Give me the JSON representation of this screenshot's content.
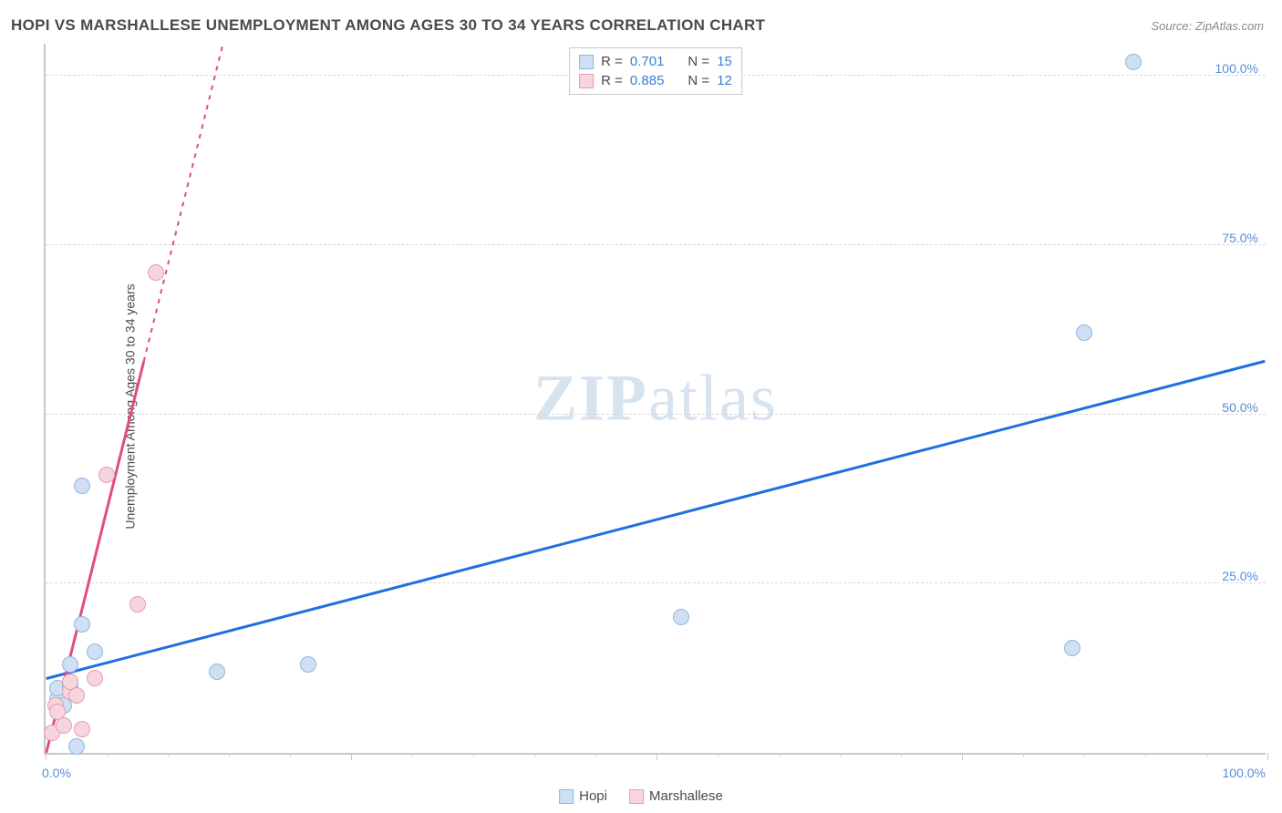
{
  "title": "HOPI VS MARSHALLESE UNEMPLOYMENT AMONG AGES 30 TO 34 YEARS CORRELATION CHART",
  "source": "Source: ZipAtlas.com",
  "y_axis_label": "Unemployment Among Ages 30 to 34 years",
  "watermark": {
    "bold": "ZIP",
    "rest": "atlas"
  },
  "chart": {
    "type": "scatter",
    "xlim": [
      0,
      100
    ],
    "ylim": [
      0,
      105
    ],
    "x_ticks": [
      0,
      100
    ],
    "x_tick_labels": [
      "0.0%",
      "100.0%"
    ],
    "x_minor_tick_step": 5,
    "y_ticks": [
      25,
      50,
      75,
      100
    ],
    "y_tick_labels": [
      "25.0%",
      "50.0%",
      "75.0%",
      "100.0%"
    ],
    "background_color": "#ffffff",
    "grid_color": "#d8d8d8",
    "axis_color": "#c8c8c8",
    "tick_label_color": "#5a8bd6",
    "series": [
      {
        "name": "Hopi",
        "color_fill": "#cfe0f5",
        "color_stroke": "#8fb6e3",
        "line_color": "#1f6fe0",
        "marker_radius": 9,
        "R": "0.701",
        "N": "15",
        "points": [
          {
            "x": 1.0,
            "y": 8.0
          },
          {
            "x": 1.0,
            "y": 9.5
          },
          {
            "x": 2.0,
            "y": 10.0
          },
          {
            "x": 2.0,
            "y": 13.0
          },
          {
            "x": 3.0,
            "y": 19.0
          },
          {
            "x": 3.0,
            "y": 39.5
          },
          {
            "x": 4.0,
            "y": 15.0
          },
          {
            "x": 2.5,
            "y": 1.0
          },
          {
            "x": 14.0,
            "y": 12.0
          },
          {
            "x": 21.5,
            "y": 13.0
          },
          {
            "x": 52.0,
            "y": 20.0
          },
          {
            "x": 84.0,
            "y": 15.5
          },
          {
            "x": 85.0,
            "y": 62.0
          },
          {
            "x": 89.0,
            "y": 102.0
          },
          {
            "x": 1.5,
            "y": 7.0
          }
        ],
        "trend": {
          "x1": 0,
          "y1": 11,
          "x2": 100,
          "y2": 58
        }
      },
      {
        "name": "Marshallese",
        "color_fill": "#f7d5de",
        "color_stroke": "#e79bb0",
        "line_color": "#e14b84",
        "marker_radius": 9,
        "R": "0.885",
        "N": "12",
        "points": [
          {
            "x": 0.5,
            "y": 3.0
          },
          {
            "x": 0.8,
            "y": 7.0
          },
          {
            "x": 1.0,
            "y": 6.0
          },
          {
            "x": 1.5,
            "y": 4.0
          },
          {
            "x": 2.0,
            "y": 9.0
          },
          {
            "x": 2.0,
            "y": 10.5
          },
          {
            "x": 2.5,
            "y": 8.5
          },
          {
            "x": 3.0,
            "y": 3.5
          },
          {
            "x": 4.0,
            "y": 11.0
          },
          {
            "x": 5.0,
            "y": 41.0
          },
          {
            "x": 7.5,
            "y": 22.0
          },
          {
            "x": 9.0,
            "y": 71.0
          }
        ],
        "trend": {
          "x1": 0,
          "y1": 0,
          "x2": 14.5,
          "y2": 105
        },
        "trend_dash_after_x": 8
      }
    ]
  },
  "stats_legend": {
    "rows": [
      {
        "swatch_fill": "#cfe0f5",
        "swatch_border": "#8fb6e3",
        "label_r": "R =",
        "val_r": "0.701",
        "label_n": "N =",
        "val_n": "15"
      },
      {
        "swatch_fill": "#f7d5de",
        "swatch_border": "#e79bb0",
        "label_r": "R =",
        "val_r": "0.885",
        "label_n": "N =",
        "val_n": "12"
      }
    ]
  },
  "bottom_legend": [
    {
      "swatch_fill": "#cfe0f5",
      "swatch_border": "#8fb6e3",
      "label": "Hopi"
    },
    {
      "swatch_fill": "#f7d5de",
      "swatch_border": "#e79bb0",
      "label": "Marshallese"
    }
  ]
}
